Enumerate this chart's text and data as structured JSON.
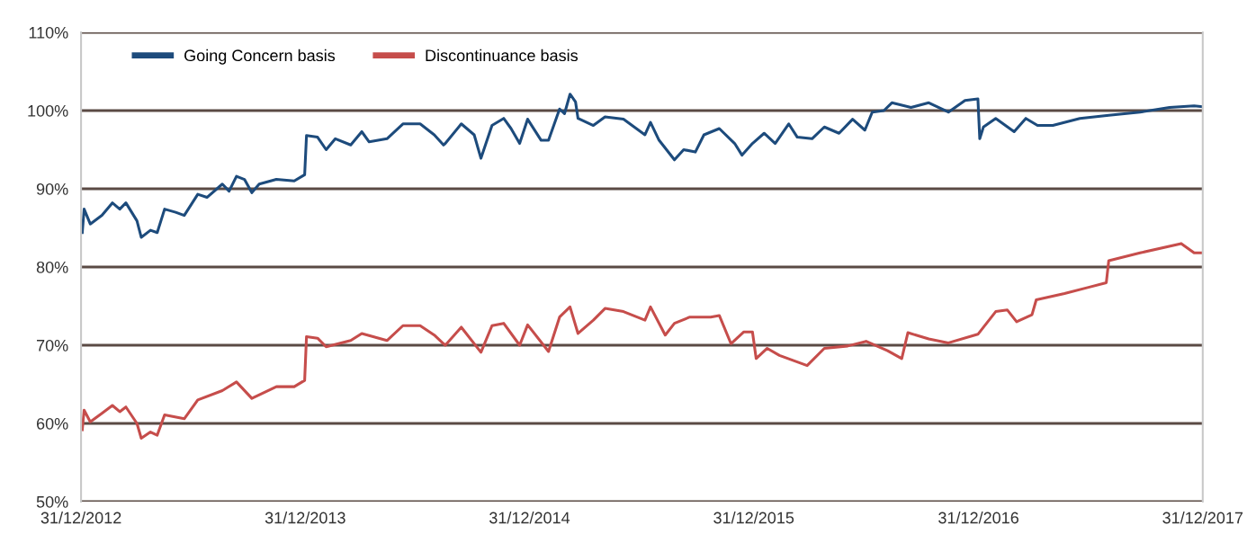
{
  "chart_data": {
    "type": "line",
    "ylim": [
      50,
      110
    ],
    "yticks": [
      {
        "value": 50,
        "label": "50%"
      },
      {
        "value": 60,
        "label": "60%"
      },
      {
        "value": 70,
        "label": "70%"
      },
      {
        "value": 80,
        "label": "80%"
      },
      {
        "value": 90,
        "label": "90%"
      },
      {
        "value": 100,
        "label": "100%"
      },
      {
        "value": 110,
        "label": "110%"
      }
    ],
    "xlim": [
      "2012-12-31",
      "2017-12-31"
    ],
    "xticks": [
      {
        "value": "2012-12-31",
        "label": "31/12/2012"
      },
      {
        "value": "2013-12-31",
        "label": "31/12/2013"
      },
      {
        "value": "2014-12-31",
        "label": "31/12/2014"
      },
      {
        "value": "2015-12-31",
        "label": "31/12/2015"
      },
      {
        "value": "2016-12-31",
        "label": "31/12/2016"
      },
      {
        "value": "2017-12-31",
        "label": "31/12/2017"
      }
    ],
    "grid": "y",
    "legend": "top left",
    "marker": "none",
    "line_style": "solid",
    "series": [
      {
        "name": "Going Concern basis",
        "color": "#1d4b7c",
        "x": [
          "2013-01-02",
          "2013-01-05",
          "2013-01-15",
          "2013-02-03",
          "2013-02-20",
          "2013-03-04",
          "2013-03-14",
          "2013-04-01",
          "2013-04-08",
          "2013-04-23",
          "2013-05-04",
          "2013-05-16",
          "2013-06-03",
          "2013-06-17",
          "2013-07-09",
          "2013-07-24",
          "2013-08-18",
          "2013-08-29",
          "2013-09-10",
          "2013-09-23",
          "2013-10-05",
          "2013-10-17",
          "2013-11-14",
          "2013-12-13",
          "2013-12-30",
          "2014-01-02",
          "2014-01-20",
          "2014-02-03",
          "2014-02-18",
          "2014-03-15",
          "2014-04-02",
          "2014-04-14",
          "2014-05-13",
          "2014-06-08",
          "2014-07-06",
          "2014-07-29",
          "2014-08-13",
          "2014-08-16",
          "2014-09-11",
          "2014-10-02",
          "2014-10-13",
          "2014-10-31",
          "2014-11-19",
          "2014-12-01",
          "2014-12-15",
          "2014-12-28",
          "2015-01-19",
          "2015-01-31",
          "2015-02-18",
          "2015-02-26",
          "2015-03-07",
          "2015-03-16",
          "2015-03-20",
          "2015-04-14",
          "2015-05-03",
          "2015-06-02",
          "2015-07-07",
          "2015-07-16",
          "2015-07-30",
          "2015-08-24",
          "2015-09-08",
          "2015-09-27",
          "2015-10-11",
          "2015-11-05",
          "2015-11-30",
          "2015-12-12",
          "2015-12-29",
          "2016-01-17",
          "2016-02-04",
          "2016-02-26",
          "2016-03-11",
          "2016-04-04",
          "2016-04-24",
          "2016-05-18",
          "2016-06-09",
          "2016-06-29",
          "2016-07-11",
          "2016-07-30",
          "2016-08-12",
          "2016-09-12",
          "2016-10-11",
          "2016-11-12",
          "2016-12-09",
          "2016-12-30",
          "2017-01-02",
          "2017-01-08",
          "2017-01-28",
          "2017-02-27",
          "2017-03-18",
          "2017-04-06",
          "2017-05-01",
          "2017-06-14",
          "2017-07-31",
          "2017-09-20",
          "2017-11-07",
          "2017-12-17",
          "2017-12-31"
        ],
        "values": [
          84.4,
          87.4,
          85.5,
          86.6,
          88.2,
          87.4,
          88.2,
          85.9,
          83.8,
          84.7,
          84.4,
          87.4,
          87.0,
          86.6,
          89.3,
          88.9,
          90.6,
          89.7,
          91.6,
          91.2,
          89.5,
          90.6,
          91.2,
          91.0,
          91.8,
          96.8,
          96.6,
          95.0,
          96.4,
          95.6,
          97.3,
          96.0,
          96.4,
          98.3,
          98.3,
          96.9,
          95.6,
          95.8,
          98.3,
          96.9,
          93.9,
          98.1,
          99.0,
          97.7,
          95.8,
          98.9,
          96.2,
          96.2,
          100.2,
          99.6,
          102.1,
          101.1,
          99.0,
          98.1,
          99.2,
          98.9,
          96.9,
          98.5,
          96.2,
          93.7,
          95.0,
          94.7,
          96.9,
          97.7,
          95.8,
          94.3,
          95.8,
          97.1,
          95.8,
          98.3,
          96.6,
          96.4,
          97.9,
          97.1,
          98.9,
          97.5,
          99.8,
          100.0,
          101.0,
          100.4,
          101.0,
          99.8,
          101.3,
          101.5,
          96.4,
          97.9,
          99.0,
          97.3,
          99.0,
          98.1,
          98.1,
          99.0,
          99.4,
          99.8,
          100.4,
          100.6,
          100.5
        ]
      },
      {
        "name": "Discontinuance basis",
        "color": "#c64d4b",
        "x": [
          "2013-01-02",
          "2013-01-05",
          "2013-01-15",
          "2013-02-03",
          "2013-02-20",
          "2013-03-04",
          "2013-03-14",
          "2013-04-01",
          "2013-04-08",
          "2013-04-23",
          "2013-05-04",
          "2013-05-16",
          "2013-06-17",
          "2013-07-09",
          "2013-08-18",
          "2013-09-10",
          "2013-10-05",
          "2013-11-14",
          "2013-12-13",
          "2013-12-30",
          "2014-01-02",
          "2014-01-20",
          "2014-02-03",
          "2014-03-15",
          "2014-04-02",
          "2014-05-13",
          "2014-06-08",
          "2014-07-06",
          "2014-07-29",
          "2014-08-13",
          "2014-08-16",
          "2014-09-11",
          "2014-10-13",
          "2014-10-31",
          "2014-11-19",
          "2014-12-15",
          "2014-12-28",
          "2015-01-31",
          "2015-02-18",
          "2015-03-07",
          "2015-03-20",
          "2015-04-14",
          "2015-05-03",
          "2015-06-02",
          "2015-07-07",
          "2015-07-16",
          "2015-08-09",
          "2015-08-24",
          "2015-09-18",
          "2015-10-22",
          "2015-11-05",
          "2015-11-24",
          "2015-12-15",
          "2015-12-29",
          "2016-01-04",
          "2016-01-22",
          "2016-02-11",
          "2016-03-27",
          "2016-04-24",
          "2016-06-01",
          "2016-07-01",
          "2016-08-05",
          "2016-08-28",
          "2016-09-07",
          "2016-10-11",
          "2016-11-12",
          "2016-12-30",
          "2017-01-28",
          "2017-02-16",
          "2017-03-03",
          "2017-03-28",
          "2017-04-04",
          "2017-05-20",
          "2017-06-28",
          "2017-07-27",
          "2017-07-31",
          "2017-09-20",
          "2017-11-26",
          "2017-12-17",
          "2017-12-31"
        ],
        "values": [
          59.2,
          61.7,
          60.2,
          61.3,
          62.3,
          61.5,
          62.1,
          60.0,
          58.1,
          58.9,
          58.5,
          61.1,
          60.6,
          63.0,
          64.2,
          65.3,
          63.2,
          64.7,
          64.7,
          65.5,
          71.1,
          70.9,
          69.8,
          70.6,
          71.5,
          70.6,
          72.5,
          72.5,
          71.3,
          70.2,
          70.0,
          72.3,
          69.1,
          72.5,
          72.8,
          70.0,
          72.6,
          69.2,
          73.6,
          74.9,
          71.5,
          73.2,
          74.7,
          74.3,
          73.2,
          74.9,
          71.3,
          72.8,
          73.6,
          73.6,
          73.8,
          70.2,
          71.7,
          71.7,
          68.3,
          69.6,
          68.7,
          67.4,
          69.6,
          69.9,
          70.5,
          69.3,
          68.3,
          71.6,
          70.8,
          70.3,
          71.4,
          74.3,
          74.5,
          73.0,
          73.9,
          75.8,
          76.6,
          77.4,
          78.0,
          80.8,
          81.8,
          83.0,
          81.8,
          81.8
        ]
      }
    ]
  }
}
